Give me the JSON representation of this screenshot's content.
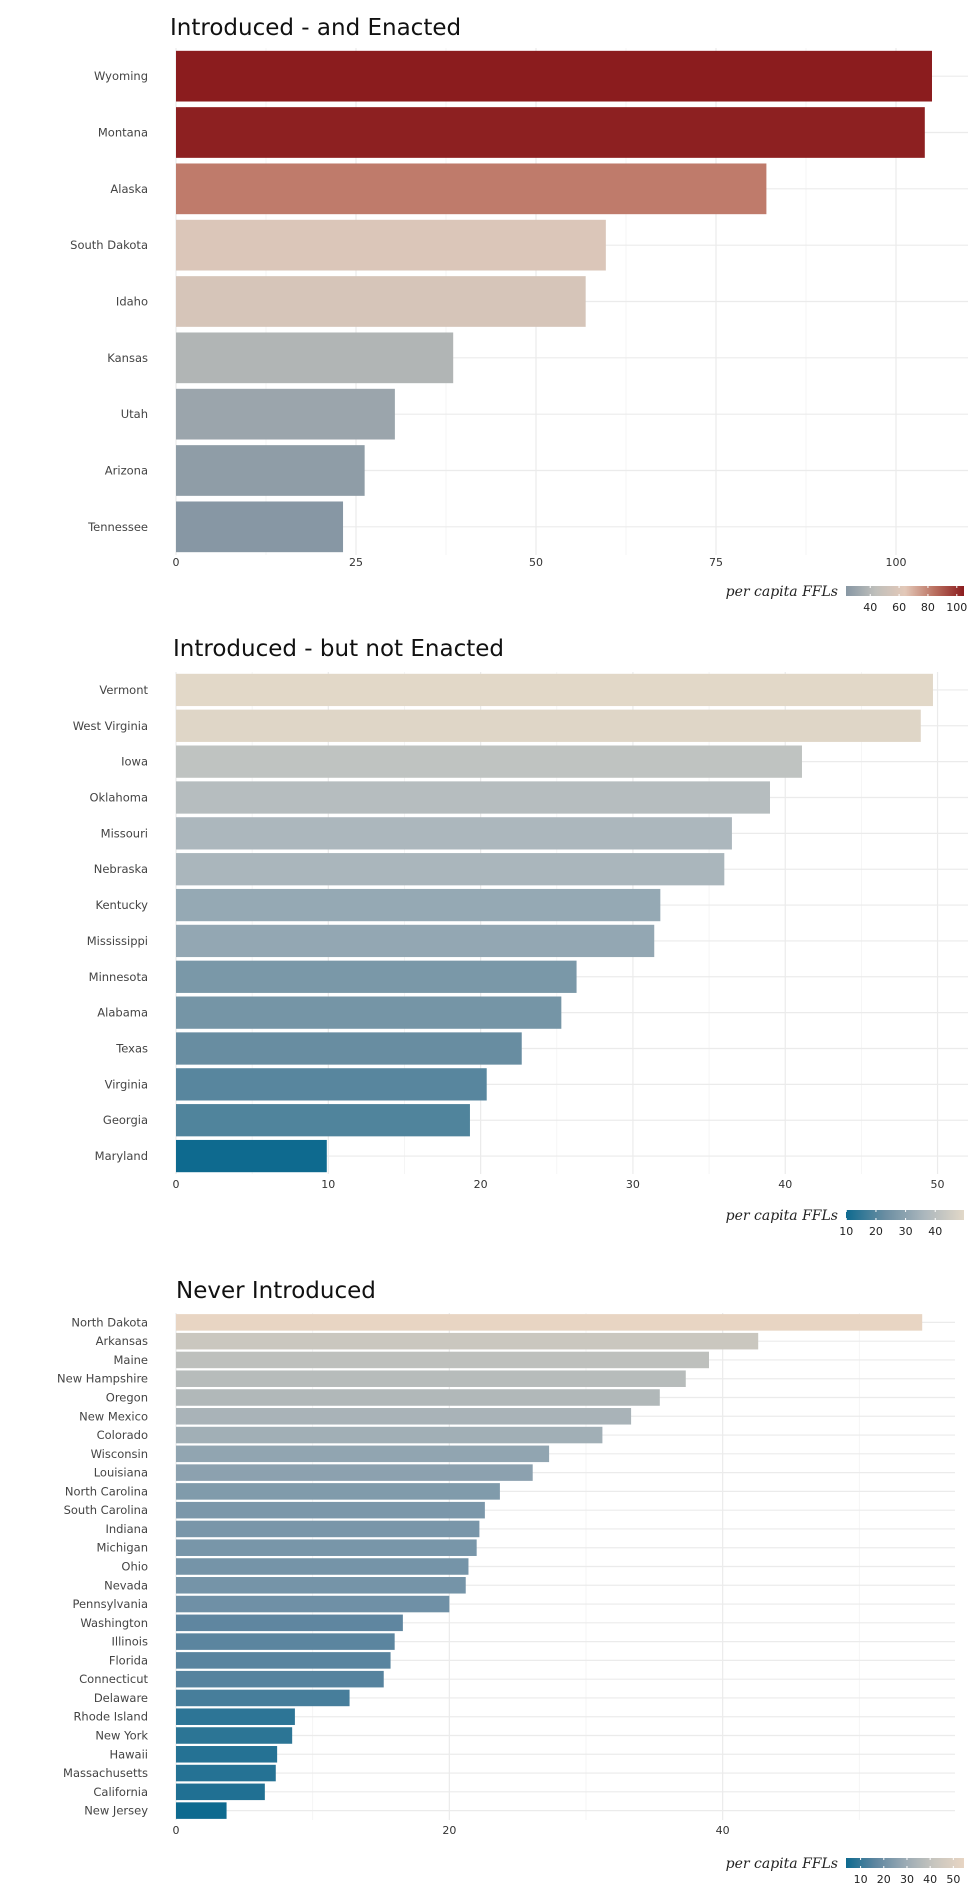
{
  "chart_data": [
    {
      "type": "bar",
      "orientation": "horizontal",
      "title": "Introduced - and Enacted",
      "categories": [
        "Wyoming",
        "Montana",
        "Alaska",
        "South Dakota",
        "Idaho",
        "Kansas",
        "Utah",
        "Arizona",
        "Tennessee"
      ],
      "values": [
        105.0,
        104.0,
        82.0,
        59.7,
        56.9,
        38.5,
        30.4,
        26.2,
        23.2
      ],
      "xlim": [
        0,
        110
      ],
      "xticks": [
        0,
        25,
        50,
        75,
        100
      ],
      "grid": true,
      "legend": {
        "title": "per capita FFLs",
        "position": "bottom-right",
        "ticks": [
          40,
          60,
          80,
          100
        ],
        "range": [
          23.2,
          105.0
        ],
        "colors": [
          "#8797a4",
          "#bfbfbb",
          "#e3c8b8",
          "#ba7060",
          "#8b1c1e"
        ]
      }
    },
    {
      "type": "bar",
      "orientation": "horizontal",
      "title": "Introduced - but not Enacted",
      "categories": [
        "Vermont",
        "West Virginia",
        "Iowa",
        "Oklahoma",
        "Missouri",
        "Nebraska",
        "Kentucky",
        "Mississippi",
        "Minnesota",
        "Alabama",
        "Texas",
        "Virginia",
        "Georgia",
        "Maryland"
      ],
      "values": [
        49.7,
        48.9,
        41.1,
        39.0,
        36.5,
        36.0,
        31.8,
        31.4,
        26.3,
        25.3,
        22.7,
        20.4,
        19.3,
        9.9
      ],
      "xlim": [
        0,
        52
      ],
      "xticks": [
        0,
        10,
        20,
        30,
        40,
        50
      ],
      "grid": true,
      "legend": {
        "title": "per capita FFLs",
        "position": "bottom-right",
        "ticks": [
          10,
          20,
          30,
          40
        ],
        "range": [
          9.9,
          49.7
        ],
        "colors": [
          "#0e6a8f",
          "#6b8ea2",
          "#acb7bd",
          "#e2d8c8"
        ]
      }
    },
    {
      "type": "bar",
      "orientation": "horizontal",
      "title": "Never Introduced",
      "categories": [
        "North Dakota",
        "Arkansas",
        "Maine",
        "New Hampshire",
        "Oregon",
        "New Mexico",
        "Colorado",
        "Wisconsin",
        "Louisiana",
        "North Carolina",
        "South Carolina",
        "Indiana",
        "Michigan",
        "Ohio",
        "Nevada",
        "Pennsylvania",
        "Washington",
        "Illinois",
        "Florida",
        "Connecticut",
        "Delaware",
        "Rhode Island",
        "New York",
        "Hawaii",
        "Massachusetts",
        "California",
        "New Jersey"
      ],
      "values": [
        54.6,
        42.6,
        39.0,
        37.3,
        35.4,
        33.3,
        31.2,
        27.3,
        26.1,
        23.7,
        22.6,
        22.2,
        22.0,
        21.4,
        21.2,
        20.0,
        16.6,
        16.0,
        15.7,
        15.2,
        12.7,
        8.7,
        8.5,
        7.4,
        7.3,
        6.5,
        3.7
      ],
      "xlim": [
        0,
        57
      ],
      "xticks": [
        0,
        20,
        40
      ],
      "grid": true,
      "legend": {
        "title": "per capita FFLs",
        "position": "bottom-right",
        "ticks": [
          10,
          20,
          30,
          40,
          50
        ],
        "range": [
          3.7,
          54.6
        ],
        "colors": [
          "#0e6a8f",
          "#5e86a0",
          "#9aaab4",
          "#c8c6bf",
          "#e8d5c3"
        ]
      }
    }
  ]
}
